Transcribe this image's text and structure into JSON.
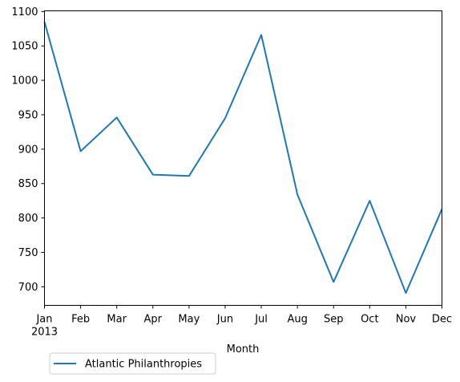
{
  "chart_data": {
    "type": "line",
    "title": "",
    "xlabel": "Month",
    "ylabel": "",
    "x": [
      "Jan",
      "Feb",
      "Mar",
      "Apr",
      "May",
      "Jun",
      "Jul",
      "Aug",
      "Sep",
      "Oct",
      "Nov",
      "Dec"
    ],
    "x_year_label": "2013",
    "series": [
      {
        "name": "Atlantic Philanthropies",
        "color": "#1f77b4",
        "values": [
          1085,
          897,
          946,
          863,
          861,
          945,
          1066,
          834,
          707,
          825,
          691,
          813
        ]
      }
    ],
    "ylim": [
      673,
      1101
    ],
    "yticks": [
      700,
      750,
      800,
      850,
      900,
      950,
      1000,
      1050,
      1100
    ],
    "grid": false,
    "legend_placement": "bottom-left, below axis"
  }
}
